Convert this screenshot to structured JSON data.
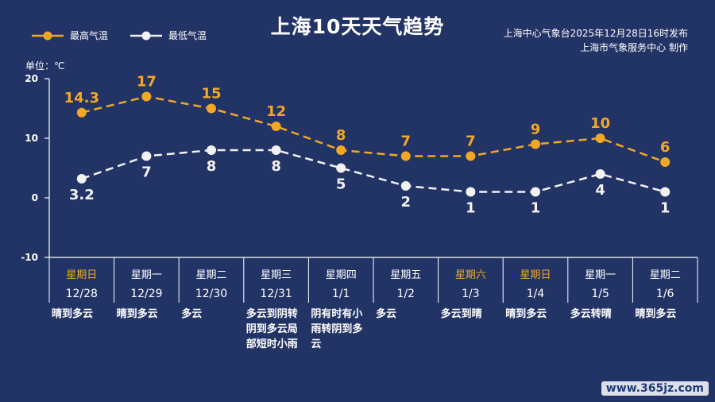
{
  "title": "上海10天天气趋势",
  "issuer": {
    "line1": "上海中心气象台2025年12月28日16时发布",
    "line2": "上海市气象服务中心 制作"
  },
  "unit_label": "单位：℃",
  "watermark": "www.365jz.com",
  "colors": {
    "background": "#223366",
    "high": "#F2A825",
    "low": "#F2F2F2",
    "weekend": "#F2A825",
    "grid": "#FFFFFF"
  },
  "chart_data": {
    "type": "line",
    "ylim": [
      -10,
      20
    ],
    "yticks": [
      -10,
      0,
      10,
      20
    ],
    "legend_position": "top-left",
    "categories": [
      "12/28",
      "12/29",
      "12/30",
      "12/31",
      "1/1",
      "1/2",
      "1/3",
      "1/4",
      "1/5",
      "1/6"
    ],
    "weekdays": [
      "星期日",
      "星期一",
      "星期二",
      "星期三",
      "星期四",
      "星期五",
      "星期六",
      "星期日",
      "星期一",
      "星期二"
    ],
    "weekend": [
      true,
      false,
      false,
      false,
      false,
      false,
      true,
      true,
      false,
      false
    ],
    "weather": [
      [
        "晴到多云"
      ],
      [
        "晴到多云"
      ],
      [
        "多云"
      ],
      [
        "多云到阴转",
        "阴到多云局",
        "部短时小雨"
      ],
      [
        "阴有时有小",
        "雨转阴到多",
        "云"
      ],
      [
        "多云"
      ],
      [
        "多云到晴"
      ],
      [
        "晴到多云"
      ],
      [
        "多云转晴"
      ],
      [
        "晴到多云"
      ]
    ],
    "series": [
      {
        "name": "最高气温",
        "values": [
          14.3,
          17,
          15,
          12,
          8,
          7,
          7,
          9,
          10,
          6
        ],
        "labels": [
          "14.3",
          "17",
          "15",
          "12",
          "8",
          "7",
          "7",
          "9",
          "10",
          "6"
        ]
      },
      {
        "name": "最低气温",
        "values": [
          3.2,
          7,
          8,
          8,
          5,
          2,
          1,
          1,
          4,
          1
        ],
        "labels": [
          "3.2",
          "7",
          "8",
          "8",
          "5",
          "2",
          "1",
          "1",
          "4",
          "1"
        ]
      }
    ]
  }
}
